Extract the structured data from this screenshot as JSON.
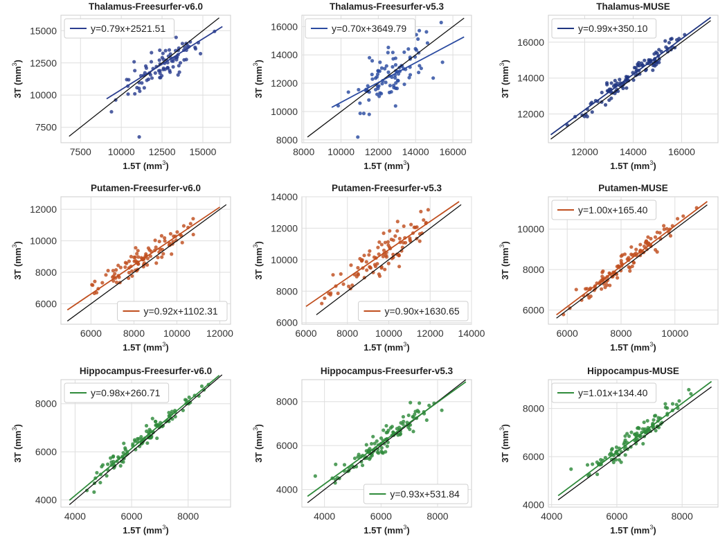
{
  "chart_data": [
    {
      "type": "scatter",
      "title": "Thalamus-Freesurfer-v6.0",
      "xlabel": "1.5T (mm",
      "ylabel": "3T (mm",
      "unit_sup": "3",
      "xlim": [
        6300,
        16700
      ],
      "ylim": [
        6300,
        16200
      ],
      "xticks": [
        7500,
        10000,
        12500,
        15000
      ],
      "yticks": [
        7500,
        10000,
        12500,
        15000
      ],
      "color": "#2a3d8f",
      "fit": {
        "slope": 0.79,
        "intercept": 2521.51,
        "x_range": [
          9100,
          16200
        ]
      },
      "identity_range": [
        6800,
        16000
      ],
      "legend": "y=0.79x+2521.51",
      "legend_position": "top-left",
      "n_points": 90,
      "spread": 650,
      "x_range": [
        9100,
        16000
      ],
      "outliers": [
        [
          11100,
          6750
        ]
      ],
      "seed": 11
    },
    {
      "type": "scatter",
      "title": "Thalamus-Freesurfer-v5.3",
      "xlabel": "1.5T (mm",
      "ylabel": "3T (mm",
      "unit_sup": "3",
      "xlim": [
        7900,
        17000
      ],
      "ylim": [
        7800,
        16800
      ],
      "xticks": [
        8000,
        10000,
        12000,
        14000,
        16000
      ],
      "yticks": [
        8000,
        10000,
        12000,
        14000,
        16000
      ],
      "color": "#2a4aa0",
      "fit": {
        "slope": 0.7,
        "intercept": 3649.79,
        "x_range": [
          9500,
          16600
        ]
      },
      "identity_range": [
        8200,
        16600
      ],
      "legend": "y=0.70x+3649.79",
      "legend_position": "top-left",
      "n_points": 95,
      "spread": 850,
      "x_range": [
        9500,
        16400
      ],
      "outliers": [
        [
          10900,
          8200
        ]
      ],
      "seed": 23
    },
    {
      "type": "scatter",
      "title": "Thalamus-MUSE",
      "xlabel": "1.5T (mm",
      "ylabel": "3T (mm",
      "unit_sup": "3",
      "xlim": [
        10500,
        17500
      ],
      "ylim": [
        10400,
        17500
      ],
      "xticks": [
        12000,
        14000,
        16000
      ],
      "yticks": [
        12000,
        14000,
        16000
      ],
      "color": "#1f3580",
      "fit": {
        "slope": 0.99,
        "intercept": 350.1,
        "x_range": [
          10600,
          17200
        ]
      },
      "identity_range": [
        10600,
        17200
      ],
      "legend": "y=0.99x+350.10",
      "legend_position": "top-left",
      "n_points": 110,
      "spread": 240,
      "x_range": [
        10700,
        17100
      ],
      "outliers": [],
      "seed": 37
    },
    {
      "type": "scatter",
      "title": "Putamen-Freesurfer-v6.0",
      "xlabel": "1.5T (mm",
      "ylabel": "3T (mm",
      "unit_sup": "3",
      "xlim": [
        4600,
        12500
      ],
      "ylim": [
        4700,
        12800
      ],
      "xticks": [
        6000,
        8000,
        10000,
        12000
      ],
      "yticks": [
        6000,
        8000,
        10000,
        12000
      ],
      "color": "#c04e1e",
      "fit": {
        "slope": 0.92,
        "intercept": 1102.31,
        "x_range": [
          4900,
          12000
        ]
      },
      "identity_range": [
        4900,
        12300
      ],
      "legend": "y=0.92x+1102.31",
      "legend_position": "bottom-right",
      "n_points": 100,
      "spread": 420,
      "x_range": [
        4900,
        11800
      ],
      "outliers": [],
      "seed": 41
    },
    {
      "type": "scatter",
      "title": "Putamen-Freesurfer-v5.3",
      "xlabel": "1.5T (mm",
      "ylabel": "3T (mm",
      "unit_sup": "3",
      "xlim": [
        5800,
        14000
      ],
      "ylim": [
        5900,
        14000
      ],
      "xticks": [
        6000,
        8000,
        10000,
        12000,
        14000
      ],
      "yticks": [
        6000,
        8000,
        10000,
        12000,
        14000
      ],
      "color": "#c04e1e",
      "fit": {
        "slope": 0.9,
        "intercept": 1630.65,
        "x_range": [
          6000,
          13400
        ]
      },
      "identity_range": [
        6500,
        13500
      ],
      "legend": "y=0.90x+1630.65",
      "legend_position": "bottom-right",
      "n_points": 100,
      "spread": 650,
      "x_range": [
        6000,
        13300
      ],
      "outliers": [],
      "seed": 53
    },
    {
      "type": "scatter",
      "title": "Putamen-MUSE",
      "xlabel": "1.5T (mm",
      "ylabel": "3T (mm",
      "unit_sup": "3",
      "xlim": [
        5300,
        11600
      ],
      "ylim": [
        5300,
        11600
      ],
      "xticks": [
        6000,
        8000,
        10000
      ],
      "yticks": [
        6000,
        8000,
        10000
      ],
      "color": "#c04e1e",
      "fit": {
        "slope": 1.0,
        "intercept": 165.4,
        "x_range": [
          5600,
          11200
        ]
      },
      "identity_range": [
        5600,
        11200
      ],
      "legend": "y=1.00x+165.40",
      "legend_position": "top-left",
      "n_points": 110,
      "spread": 260,
      "x_range": [
        5600,
        11100
      ],
      "outliers": [],
      "seed": 67
    },
    {
      "type": "scatter",
      "title": "Hippocampus-Freesurfer-v6.0",
      "xlabel": "1.5T (mm",
      "ylabel": "3T (mm",
      "unit_sup": "3",
      "xlim": [
        3500,
        9500
      ],
      "ylim": [
        3700,
        9000
      ],
      "xticks": [
        4000,
        6000,
        8000
      ],
      "yticks": [
        4000,
        6000,
        8000
      ],
      "color": "#2e8a3a",
      "fit": {
        "slope": 0.98,
        "intercept": 260.71,
        "x_range": [
          3800,
          9100
        ]
      },
      "identity_range": [
        3800,
        9200
      ],
      "legend": "y=0.98x+260.71",
      "legend_position": "top-left",
      "n_points": 110,
      "spread": 230,
      "x_range": [
        3800,
        9200
      ],
      "outliers": [],
      "seed": 71
    },
    {
      "type": "scatter",
      "title": "Hippocampus-Freesurfer-v5.3",
      "xlabel": "1.5T (mm",
      "ylabel": "3T (mm",
      "unit_sup": "3",
      "xlim": [
        3200,
        9200
      ],
      "ylim": [
        3200,
        9000
      ],
      "xticks": [
        4000,
        6000,
        8000
      ],
      "yticks": [
        4000,
        6000,
        8000
      ],
      "color": "#2e8a3a",
      "fit": {
        "slope": 0.93,
        "intercept": 531.84,
        "x_range": [
          3400,
          9000
        ]
      },
      "identity_range": [
        3400,
        9000
      ],
      "legend": "y=0.93x+531.84",
      "legend_position": "bottom-right",
      "n_points": 110,
      "spread": 280,
      "x_range": [
        3400,
        8900
      ],
      "outliers": [],
      "seed": 83
    },
    {
      "type": "scatter",
      "title": "Hippocampus-MUSE",
      "xlabel": "1.5T (mm",
      "ylabel": "3T (mm",
      "unit_sup": "3",
      "xlim": [
        3900,
        9100
      ],
      "ylim": [
        3900,
        9200
      ],
      "xticks": [
        4000,
        6000,
        8000
      ],
      "yticks": [
        4000,
        6000,
        8000
      ],
      "color": "#2e8a3a",
      "fit": {
        "slope": 1.01,
        "intercept": 134.4,
        "x_range": [
          4200,
          8900
        ]
      },
      "identity_range": [
        4200,
        8900
      ],
      "legend": "y=1.01x+134.40",
      "legend_position": "top-left",
      "n_points": 110,
      "spread": 230,
      "x_range": [
        4200,
        8800
      ],
      "outliers": [],
      "seed": 97
    }
  ]
}
